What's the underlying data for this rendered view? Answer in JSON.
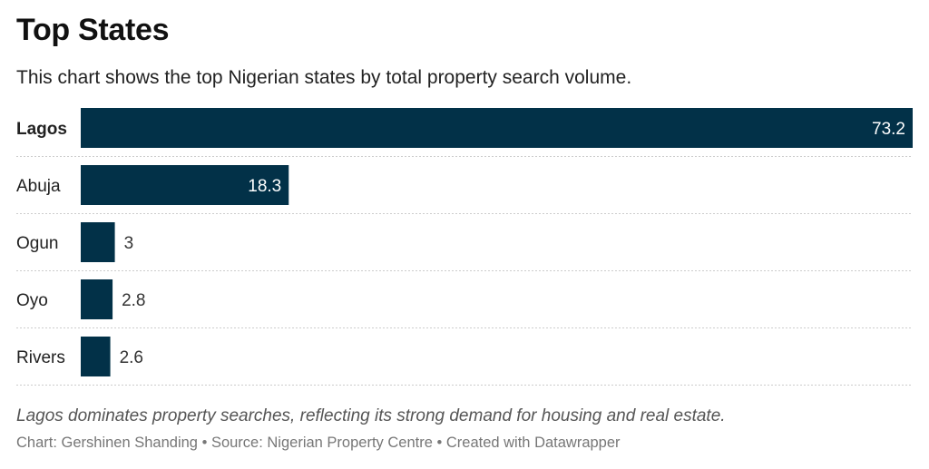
{
  "title": "Top States",
  "subtitle": "This chart shows the top Nigerian states by total property search volume.",
  "note": "Lagos dominates property searches, reflecting its strong demand for housing and real estate.",
  "footer": {
    "chart_credit": "Chart: Gershinen Shanding",
    "source": "Source: Nigerian Property Centre",
    "created_with": "Created with Datawrapper",
    "separator": "•"
  },
  "colors": {
    "bar": "#023148",
    "value_inside": "#ffffff",
    "value_outside": "#333333"
  },
  "chart_data": {
    "type": "bar",
    "orientation": "horizontal",
    "title": "Top States",
    "subtitle": "This chart shows the top Nigerian states by total property search volume.",
    "categories": [
      "Lagos",
      "Abuja",
      "Ogun",
      "Oyo",
      "Rivers"
    ],
    "values": [
      73.2,
      18.3,
      3,
      2.8,
      2.6
    ],
    "value_labels": [
      "73.2",
      "18.3",
      "3",
      "2.8",
      "2.6"
    ],
    "highlighted": [
      "Lagos"
    ],
    "xlim": [
      0,
      73.2
    ],
    "grid": false,
    "legend": "none"
  }
}
